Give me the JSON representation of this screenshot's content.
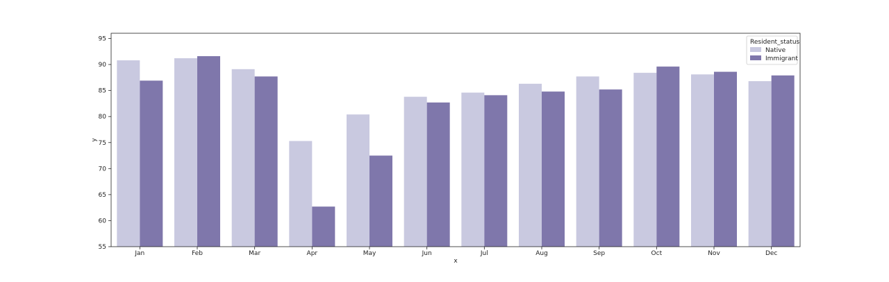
{
  "chart_data": {
    "type": "bar",
    "xlabel": "x",
    "ylabel": "y",
    "ylim": [
      55,
      96
    ],
    "yticks": [
      55,
      60,
      65,
      70,
      75,
      80,
      85,
      90,
      95
    ],
    "grid": false,
    "legend": {
      "title": "Resident_status",
      "placement": "top-right"
    },
    "categories": [
      "Jan",
      "Feb",
      "Mar",
      "Apr",
      "May",
      "Jun",
      "Jul",
      "Aug",
      "Sep",
      "Oct",
      "Nov",
      "Dec"
    ],
    "series": [
      {
        "name": "Native",
        "color": "#c9c9e0",
        "values": [
          90.8,
          91.2,
          89.1,
          75.3,
          80.4,
          83.8,
          84.6,
          86.3,
          87.7,
          88.4,
          88.1,
          86.8
        ]
      },
      {
        "name": "Immigrant",
        "color": "#7f77ab",
        "values": [
          86.9,
          91.6,
          87.7,
          62.7,
          72.5,
          82.7,
          84.1,
          84.8,
          85.2,
          89.6,
          88.6,
          87.9
        ]
      }
    ]
  }
}
